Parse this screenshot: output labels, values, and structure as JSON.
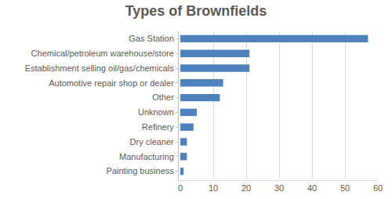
{
  "chart_data": {
    "type": "bar",
    "title": "Types of Brownfields",
    "orientation": "horizontal",
    "categories": [
      "Gas Station",
      "Chemical/petroleum warehouse/store",
      "Establishment selling oil/gas/chemicals",
      "Automotive repair shop or dealer",
      "Other",
      "Unknown",
      "Refinery",
      "Dry cleaner",
      "Manufacturing",
      "Painting business"
    ],
    "values": [
      57,
      21,
      21,
      13,
      12,
      5,
      4,
      2,
      2,
      1
    ],
    "color": "#4f81bd",
    "xlim": [
      0,
      60
    ],
    "xticks": [
      0,
      10,
      20,
      30,
      40,
      50,
      60
    ],
    "grid": true
  }
}
